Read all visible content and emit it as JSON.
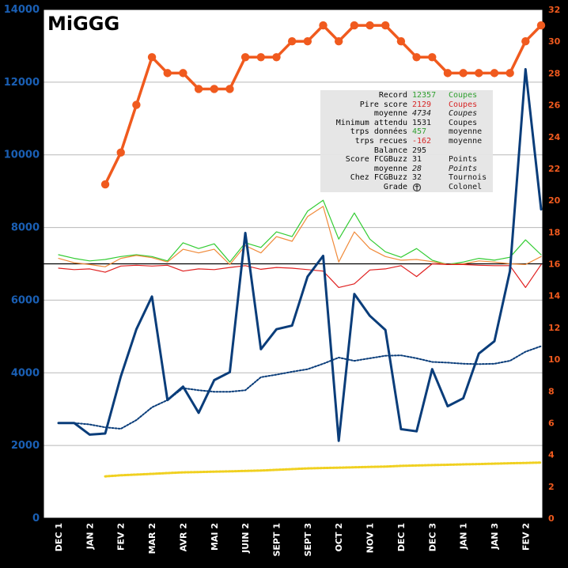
{
  "logo_text": "MiGGG",
  "stats": [
    {
      "label": "Record",
      "value": "12357",
      "unit": "Coupes",
      "value_color": "green",
      "unit_color": "green"
    },
    {
      "label": "Pire score",
      "value": "2129",
      "unit": "Coupes",
      "value_color": "red",
      "unit_color": "red"
    },
    {
      "label": "moyenne",
      "value": "4734",
      "unit": "Coupes",
      "value_color": "black",
      "unit_color": "black",
      "italic": true
    },
    {
      "label": "Minimum attendu",
      "value": "1531",
      "unit": "Coupes",
      "value_color": "black",
      "unit_color": "black"
    },
    {
      "label": "trps données",
      "value": "457",
      "unit": "moyenne",
      "value_color": "green",
      "unit_color": "black"
    },
    {
      "label": "trps recues",
      "value": "-162",
      "unit": "moyenne",
      "value_color": "red",
      "unit_color": "black"
    },
    {
      "label": "Balance",
      "value": "295",
      "unit": "",
      "value_color": "black",
      "unit_color": "black"
    },
    {
      "label": "Score FCGBuzz",
      "value": "31",
      "unit": "Points",
      "value_color": "black",
      "unit_color": "black"
    },
    {
      "label": "moyenne",
      "value": "28",
      "unit": "Points",
      "value_color": "black",
      "unit_color": "black",
      "italic": true
    },
    {
      "label": "Chez FCGBuzz",
      "value": "32",
      "unit": "Tournois",
      "value_color": "black",
      "unit_color": "black"
    },
    {
      "label": "Grade",
      "value": "",
      "unit": "Colonel",
      "value_color": "black",
      "unit_color": "black",
      "icon": "grade-badge-icon"
    }
  ],
  "colors": {
    "main_series": "#0a3d7a",
    "moving_avg": "#0a3d7a",
    "min_expected": "#f0d020",
    "rank_series": "#f05a1e",
    "green_line": "#33cc33",
    "orange_line": "#f08a3a",
    "red_line": "#e02020",
    "left_axis": "#1a5fb4",
    "right_axis": "#f05a1e"
  },
  "chart_data": {
    "type": "line",
    "x_tick_labels": [
      "DEC 1",
      "JAN 2",
      "FEV 2",
      "MAR 2",
      "AVR 2",
      "MAI 2",
      "JUIN 2",
      "SEPT 1",
      "SEPT 3",
      "OCT 2",
      "NOV 1",
      "DEC 1",
      "DEC 3",
      "JAN 1",
      "JAN 3",
      "FEV 2"
    ],
    "x_tick_index": [
      0,
      2,
      4,
      6,
      8,
      10,
      12,
      14,
      16,
      18,
      20,
      22,
      24,
      26,
      28,
      30
    ],
    "n_points": 32,
    "ylim_left": [
      0,
      14000
    ],
    "yticks_left": [
      0,
      2000,
      4000,
      6000,
      8000,
      10000,
      12000,
      14000
    ],
    "ylim_right": [
      0,
      32
    ],
    "yticks_right": [
      0,
      2,
      4,
      6,
      8,
      10,
      12,
      14,
      16,
      18,
      20,
      22,
      24,
      26,
      28,
      30,
      32
    ],
    "reference_line_left": 7000,
    "grid": true,
    "series": [
      {
        "key": "coupes",
        "axis": "left",
        "style": "solid-thick",
        "values": [
          2620,
          2620,
          2300,
          2330,
          3900,
          5200,
          6100,
          3250,
          3620,
          2900,
          3800,
          4020,
          7850,
          4650,
          5200,
          5300,
          6650,
          7220,
          2130,
          6170,
          5570,
          5180,
          2450,
          2390,
          4100,
          3080,
          3300,
          4530,
          4870,
          6800,
          12357,
          8500
        ]
      },
      {
        "key": "moyenne_mobile",
        "axis": "left",
        "style": "dotted",
        "values": [
          2620,
          2620,
          2580,
          2500,
          2460,
          2700,
          3050,
          3250,
          3580,
          3520,
          3480,
          3480,
          3520,
          3880,
          3950,
          4030,
          4100,
          4250,
          4420,
          4330,
          4400,
          4470,
          4480,
          4400,
          4300,
          4280,
          4250,
          4240,
          4250,
          4330,
          4580,
          4734
        ]
      },
      {
        "key": "minimum_attendu",
        "axis": "left",
        "style": "dotted-yellow",
        "start_index": 3,
        "values": [
          null,
          null,
          null,
          1150,
          1180,
          1200,
          1220,
          1240,
          1260,
          1270,
          1280,
          1290,
          1300,
          1310,
          1330,
          1350,
          1370,
          1380,
          1390,
          1400,
          1410,
          1420,
          1440,
          1450,
          1460,
          1470,
          1480,
          1490,
          1500,
          1510,
          1520,
          1531
        ]
      },
      {
        "key": "classement",
        "axis": "right",
        "style": "solid-markers",
        "start_index": 3,
        "values": [
          null,
          null,
          null,
          21,
          23,
          26,
          29,
          28,
          28,
          27,
          27,
          27,
          29,
          29,
          29,
          30,
          30,
          31,
          30,
          31,
          31,
          31,
          30,
          29,
          29,
          28,
          28,
          28,
          28,
          28,
          30,
          31
        ]
      },
      {
        "key": "ligne_verte",
        "axis": "left",
        "style": "thin-green",
        "values": [
          7250,
          7150,
          7080,
          7120,
          7200,
          7250,
          7200,
          7080,
          7580,
          7420,
          7550,
          7050,
          7580,
          7450,
          7880,
          7750,
          8450,
          8750,
          7680,
          8400,
          7680,
          7330,
          7180,
          7420,
          7100,
          6980,
          7050,
          7150,
          7100,
          7180,
          7660,
          7250
        ]
      },
      {
        "key": "ligne_orange",
        "axis": "left",
        "style": "thin-orange",
        "values": [
          7150,
          7030,
          6980,
          6920,
          7150,
          7230,
          7170,
          7050,
          7400,
          7300,
          7400,
          6980,
          7500,
          7300,
          7750,
          7620,
          8300,
          8580,
          7050,
          7880,
          7420,
          7200,
          7100,
          7120,
          7060,
          6980,
          7000,
          7080,
          7050,
          7000,
          6980,
          7200
        ]
      },
      {
        "key": "ligne_rouge",
        "axis": "left",
        "style": "thin-red",
        "values": [
          6880,
          6840,
          6860,
          6770,
          6940,
          6960,
          6940,
          6960,
          6800,
          6860,
          6840,
          6900,
          6950,
          6850,
          6900,
          6880,
          6840,
          6800,
          6350,
          6450,
          6830,
          6860,
          6950,
          6650,
          7000,
          6980,
          6980,
          6960,
          6950,
          6950,
          6350,
          6980
        ]
      }
    ]
  }
}
